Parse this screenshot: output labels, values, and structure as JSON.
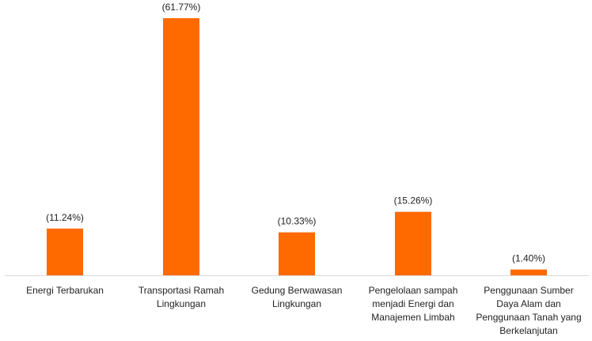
{
  "chart_data": {
    "type": "bar",
    "categories": [
      [
        "Energi Terbarukan"
      ],
      [
        "Transportasi Ramah",
        "Lingkungan"
      ],
      [
        "Gedung Berwawasan",
        "Lingkungan"
      ],
      [
        "Pengelolaan sampah",
        "menjadi Energi dan",
        "Manajemen Limbah"
      ],
      [
        "Penggunaan Sumber",
        "Daya Alam dan",
        "Penggunaan Tanah yang",
        "Berkelanjutan"
      ]
    ],
    "values": [
      11.24,
      61.77,
      10.33,
      15.26,
      1.4
    ],
    "data_labels": [
      "(11.24%)",
      "(61.77%)",
      "(10.33%)",
      "(15.26%)",
      "(1.40%)"
    ],
    "bar_color": "#ff6a00",
    "axis_color": "#d9d9d9",
    "ylim": [
      0,
      61.77
    ],
    "grid": false,
    "legend": "none"
  }
}
